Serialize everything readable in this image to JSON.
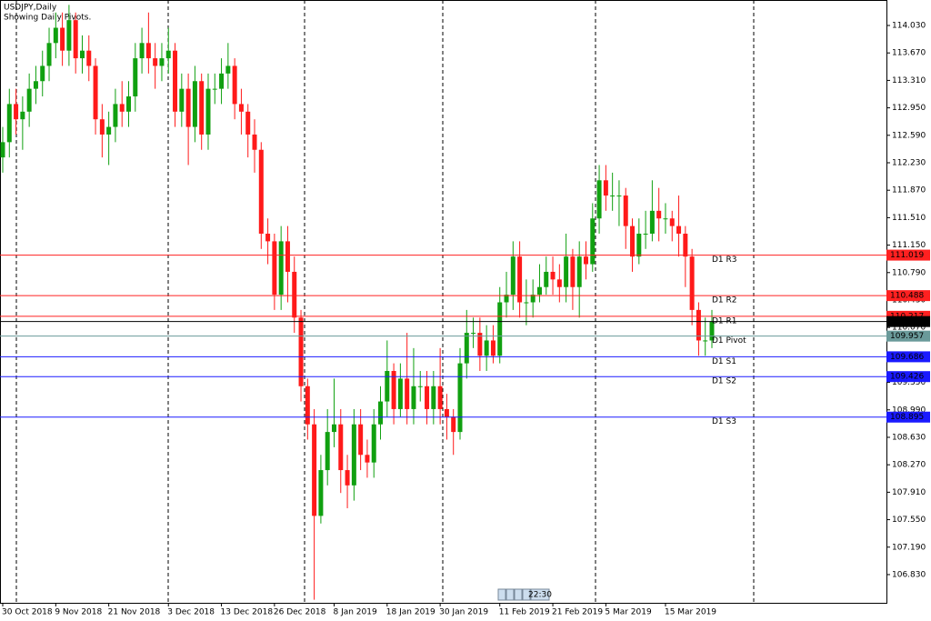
{
  "chart_data": {
    "type": "candlestick",
    "title": "USDJPY,Daily",
    "subtitle": "Showing Daily Pivots.",
    "timer": "22:30",
    "up_color": "#10a010",
    "down_color": "#ff1a1a",
    "categories": [
      "30 Oct 2018",
      null,
      null,
      null,
      null,
      null,
      null,
      null,
      "9 Nov 2018",
      null,
      null,
      null,
      null,
      null,
      null,
      null,
      "21 Nov 2018",
      null,
      null,
      null,
      null,
      null,
      null,
      null,
      null,
      "3 Dec 2018",
      null,
      null,
      null,
      null,
      null,
      null,
      null,
      "13 Dec 2018",
      null,
      null,
      null,
      null,
      null,
      null,
      null,
      "26 Dec 2018",
      null,
      null,
      null,
      null,
      null,
      null,
      null,
      null,
      "8 Jan 2019",
      null,
      null,
      null,
      null,
      null,
      null,
      null,
      "18 Jan 2019",
      null,
      null,
      null,
      null,
      null,
      null,
      null,
      "30 Jan 2019",
      null,
      null,
      null,
      null,
      null,
      null,
      null,
      null,
      "11 Feb 2019",
      null,
      null,
      null,
      null,
      null,
      null,
      null,
      "21 Feb 2019",
      null,
      null,
      null,
      null,
      null,
      null,
      null,
      "5 Mar 2019",
      null,
      null,
      null,
      null,
      null,
      null,
      null,
      null,
      "15 Mar 2019",
      null,
      null,
      null,
      null,
      null,
      null,
      null
    ],
    "open": [
      112.3,
      112.5,
      113.0,
      112.8,
      112.9,
      113.2,
      113.3,
      113.5,
      113.8,
      114.0,
      113.7,
      114.1,
      113.6,
      113.7,
      113.5,
      112.8,
      112.6,
      112.7,
      113.0,
      112.9,
      113.1,
      113.6,
      113.8,
      113.6,
      113.5,
      113.6,
      113.7,
      112.9,
      113.2,
      112.7,
      113.3,
      112.6,
      113.2,
      113.2,
      113.4,
      113.5,
      113.0,
      112.9,
      112.6,
      112.4,
      111.3,
      111.2,
      110.5,
      111.2,
      110.8,
      110.2,
      109.3,
      108.8,
      107.6,
      108.2,
      108.7,
      108.8,
      108.2,
      108.0,
      108.8,
      108.4,
      108.3,
      108.8,
      109.1,
      109.5,
      109.0,
      109.4,
      109.0,
      109.3,
      109.3,
      109.0,
      109.3,
      109.0,
      108.9,
      108.7,
      109.6,
      110.0,
      110.0,
      109.7,
      109.9,
      109.7,
      110.4,
      110.5,
      111.0,
      110.4,
      110.4,
      110.5,
      110.6,
      110.8,
      110.7,
      110.6,
      111.0,
      110.6,
      111.0,
      110.9,
      111.5,
      112.0,
      111.8,
      111.8,
      111.8,
      111.4,
      111.0,
      111.3,
      111.3,
      111.6,
      111.5,
      111.5,
      111.4,
      111.3,
      111.0,
      110.3,
      109.9,
      109.9
    ],
    "high": [
      112.7,
      113.2,
      113.2,
      113.1,
      113.4,
      113.5,
      113.7,
      114.0,
      114.2,
      114.2,
      114.3,
      114.2,
      113.9,
      113.9,
      113.6,
      113.0,
      112.9,
      113.2,
      113.3,
      113.3,
      113.8,
      114.0,
      114.2,
      113.8,
      113.8,
      114.0,
      113.8,
      113.4,
      113.4,
      113.5,
      113.4,
      113.4,
      113.4,
      113.6,
      113.8,
      113.6,
      113.2,
      113.0,
      112.8,
      112.5,
      111.5,
      111.3,
      111.4,
      111.4,
      111.0,
      110.3,
      109.4,
      109.0,
      108.4,
      109.0,
      109.4,
      109.0,
      108.4,
      109.0,
      109.0,
      108.6,
      109.0,
      109.3,
      109.9,
      109.6,
      109.6,
      110.0,
      109.8,
      109.5,
      109.5,
      109.5,
      109.8,
      109.2,
      109.0,
      109.8,
      110.3,
      110.2,
      110.2,
      110.1,
      110.1,
      110.6,
      110.8,
      111.2,
      111.2,
      110.7,
      110.7,
      110.9,
      111.0,
      111.0,
      110.9,
      111.3,
      111.1,
      111.2,
      111.2,
      111.7,
      112.2,
      112.2,
      112.1,
      112.0,
      111.9,
      111.5,
      111.5,
      111.6,
      112.0,
      111.9,
      111.7,
      111.6,
      111.8,
      111.4,
      111.1,
      110.4,
      110.2,
      110.3
    ],
    "low": [
      112.1,
      112.3,
      112.6,
      112.4,
      112.7,
      113.0,
      113.1,
      113.3,
      113.6,
      113.5,
      113.5,
      113.4,
      113.4,
      113.3,
      112.6,
      112.3,
      112.2,
      112.5,
      112.7,
      112.7,
      112.9,
      113.4,
      113.4,
      113.2,
      113.3,
      113.4,
      112.7,
      112.7,
      112.2,
      112.5,
      112.4,
      112.4,
      113.0,
      113.0,
      113.2,
      112.8,
      112.6,
      112.3,
      112.1,
      111.1,
      110.9,
      110.3,
      110.3,
      110.4,
      110.0,
      109.1,
      108.6,
      106.5,
      107.5,
      108.0,
      108.5,
      107.9,
      107.7,
      107.8,
      108.2,
      108.1,
      108.1,
      108.6,
      108.9,
      108.8,
      108.9,
      108.8,
      108.8,
      109.1,
      108.8,
      108.8,
      108.8,
      108.6,
      108.4,
      108.6,
      109.4,
      109.8,
      109.5,
      109.5,
      109.6,
      109.6,
      110.2,
      110.3,
      110.2,
      110.1,
      110.2,
      110.4,
      110.5,
      110.5,
      110.4,
      110.4,
      110.3,
      110.2,
      110.7,
      110.8,
      111.3,
      111.6,
      111.6,
      111.4,
      111.1,
      110.8,
      110.9,
      111.1,
      111.2,
      111.2,
      111.3,
      111.2,
      111.0,
      110.6,
      110.1,
      109.7,
      109.7,
      109.8
    ],
    "close": [
      112.5,
      113.0,
      112.8,
      112.9,
      113.2,
      113.3,
      113.5,
      113.8,
      114.0,
      113.7,
      114.1,
      113.6,
      113.7,
      113.5,
      112.8,
      112.6,
      112.7,
      113.0,
      112.9,
      113.1,
      113.6,
      113.8,
      113.6,
      113.5,
      113.6,
      113.7,
      112.9,
      113.2,
      112.7,
      113.3,
      112.6,
      113.2,
      113.2,
      113.4,
      113.5,
      113.0,
      112.9,
      112.6,
      112.4,
      111.3,
      111.2,
      110.5,
      111.2,
      110.8,
      110.2,
      109.3,
      108.8,
      107.6,
      108.2,
      108.7,
      108.8,
      108.2,
      108.0,
      108.8,
      108.4,
      108.3,
      108.8,
      109.1,
      109.5,
      109.0,
      109.4,
      109.0,
      109.3,
      109.3,
      109.0,
      109.3,
      109.0,
      108.9,
      108.7,
      109.6,
      110.0,
      110.0,
      109.7,
      109.9,
      109.7,
      110.4,
      110.5,
      111.0,
      110.4,
      110.4,
      110.5,
      110.6,
      110.8,
      110.7,
      110.6,
      111.0,
      110.6,
      111.0,
      110.9,
      111.5,
      112.0,
      111.8,
      111.8,
      111.8,
      111.4,
      111.0,
      111.3,
      111.3,
      111.6,
      111.5,
      111.5,
      111.4,
      111.3,
      111.0,
      110.3,
      109.9,
      109.9,
      110.148
    ],
    "ylim": [
      106.46,
      114.364
    ],
    "yticks": [
      {
        "value": 114.03,
        "label": "114.030"
      },
      {
        "value": 113.67,
        "label": "113.670"
      },
      {
        "value": 113.31,
        "label": "113.310"
      },
      {
        "value": 112.95,
        "label": "112.950"
      },
      {
        "value": 112.59,
        "label": "112.590"
      },
      {
        "value": 112.23,
        "label": "112.230"
      },
      {
        "value": 111.87,
        "label": "111.870"
      },
      {
        "value": 111.51,
        "label": "111.510"
      },
      {
        "value": 111.15,
        "label": "111.150"
      },
      {
        "value": 110.79,
        "label": "110.790"
      },
      {
        "value": 110.43,
        "label": "110.430"
      },
      {
        "value": 110.07,
        "label": "110.070"
      },
      {
        "value": 109.35,
        "label": "109.350"
      },
      {
        "value": 108.99,
        "label": "108.990"
      },
      {
        "value": 108.63,
        "label": "108.630"
      },
      {
        "value": 108.27,
        "label": "108.270"
      },
      {
        "value": 107.91,
        "label": "107.910"
      },
      {
        "value": 107.55,
        "label": "107.550"
      },
      {
        "value": 107.19,
        "label": "107.190"
      },
      {
        "value": 106.83,
        "label": "106.830"
      }
    ],
    "current_price": 110.148,
    "levels": [
      {
        "name": "D1 R3",
        "value": 111.019,
        "color": "#ff2020"
      },
      {
        "name": "D1 R2",
        "value": 110.488,
        "color": "#ff2020"
      },
      {
        "name": "D1 R1",
        "value": 110.217,
        "color": "#ff2020"
      },
      {
        "name": "D1 Pivot",
        "value": 109.957,
        "color": "#6a9a9a"
      },
      {
        "name": "D1 S1",
        "value": 109.686,
        "color": "#1a1aff"
      },
      {
        "name": "D1 S2",
        "value": 109.426,
        "color": "#1a1aff"
      },
      {
        "name": "D1 S3",
        "value": 108.895,
        "color": "#1a1aff"
      }
    ]
  }
}
